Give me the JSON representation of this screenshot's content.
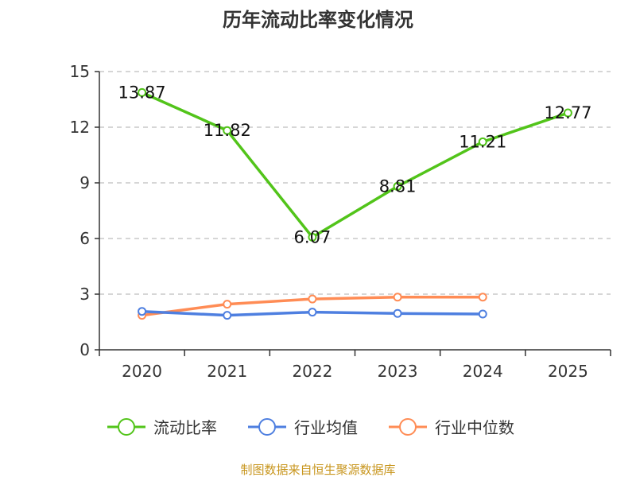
{
  "chart_data": {
    "type": "line",
    "title": "历年流动比率变化情况",
    "categories": [
      "2020",
      "2021",
      "2022",
      "2023",
      "2024",
      "2025"
    ],
    "ylim": [
      0,
      15
    ],
    "yticks": [
      0,
      3,
      6,
      9,
      12,
      15
    ],
    "grid": true,
    "legend_position": "bottom",
    "series": [
      {
        "name": "流动比率",
        "color": "#52c41a",
        "values": [
          13.87,
          11.82,
          6.07,
          8.81,
          11.21,
          12.77
        ],
        "labels": [
          "13.87",
          "11.82",
          "6.07",
          "8.81",
          "11.21",
          "12.77"
        ]
      },
      {
        "name": "行业均值",
        "color": "#4e7fe0",
        "values": [
          2.07,
          1.86,
          2.03,
          1.96,
          1.93,
          null
        ]
      },
      {
        "name": "行业中位数",
        "color": "#ff8c55",
        "values": [
          1.86,
          2.46,
          2.74,
          2.84,
          2.84,
          null
        ]
      }
    ],
    "source": "制图数据来自恒生聚源数据库"
  }
}
